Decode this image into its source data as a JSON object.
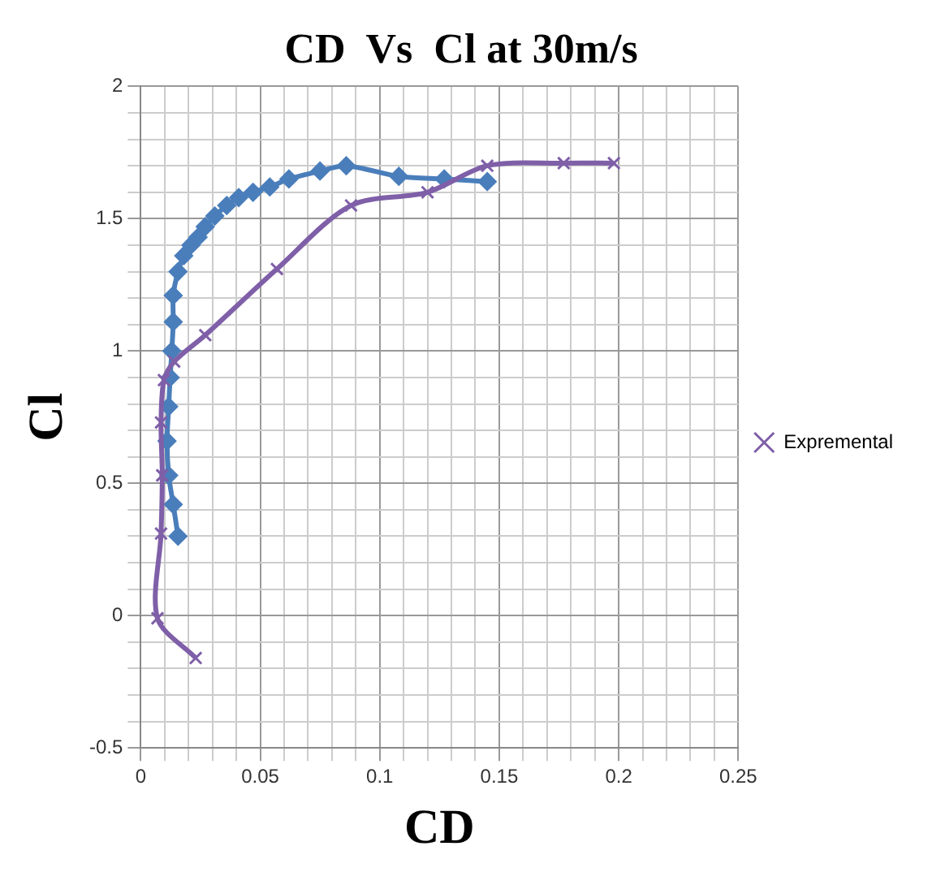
{
  "chart_data": {
    "type": "line",
    "title": "CD  Vs  Cl at 30m/s",
    "xlabel": "CD",
    "ylabel": "Cl",
    "xlim": [
      0,
      0.25
    ],
    "ylim": [
      -0.5,
      2
    ],
    "xticks": [
      0,
      {
        "value": 0.01,
        "label": null
      },
      {
        "value": 0.02,
        "label": null
      },
      {
        "value": 0.03,
        "label": null
      },
      {
        "value": 0.04,
        "label": null
      },
      0.05,
      {
        "value": 0.06,
        "label": null
      },
      {
        "value": 0.07,
        "label": null
      },
      {
        "value": 0.08,
        "label": null
      },
      {
        "value": 0.09,
        "label": null
      },
      0.1,
      {
        "value": 0.11,
        "label": null
      },
      {
        "value": 0.12,
        "label": null
      },
      {
        "value": 0.13,
        "label": null
      },
      {
        "value": 0.14,
        "label": null
      },
      0.15,
      {
        "value": 0.16,
        "label": null
      },
      {
        "value": 0.17,
        "label": null
      },
      {
        "value": 0.18,
        "label": null
      },
      {
        "value": 0.19,
        "label": null
      },
      0.2,
      {
        "value": 0.21,
        "label": null
      },
      {
        "value": 0.22,
        "label": null
      },
      {
        "value": 0.23,
        "label": null
      },
      {
        "value": 0.24,
        "label": null
      },
      0.25
    ],
    "yticks": [
      -0.5,
      {
        "value": -0.4,
        "label": null
      },
      {
        "value": -0.3,
        "label": null
      },
      {
        "value": -0.2,
        "label": null
      },
      {
        "value": -0.1,
        "label": null
      },
      0,
      {
        "value": 0.1,
        "label": null
      },
      {
        "value": 0.2,
        "label": null
      },
      {
        "value": 0.3,
        "label": null
      },
      {
        "value": 0.4,
        "label": null
      },
      0.5,
      {
        "value": 0.6,
        "label": null
      },
      {
        "value": 0.7,
        "label": null
      },
      {
        "value": 0.8,
        "label": null
      },
      {
        "value": 0.9,
        "label": null
      },
      1,
      {
        "value": 1.1,
        "label": null
      },
      {
        "value": 1.2,
        "label": null
      },
      {
        "value": 1.3,
        "label": null
      },
      {
        "value": 1.4,
        "label": null
      },
      1.5,
      {
        "value": 1.6,
        "label": null
      },
      {
        "value": 1.7,
        "label": null
      },
      {
        "value": 1.8,
        "label": null
      },
      {
        "value": 1.9,
        "label": null
      },
      2
    ],
    "grid": true,
    "legend": "right",
    "series": [
      {
        "color": "#4a7ebb",
        "marker": "diamond",
        "x": [
          0.0156,
          0.0136,
          0.0117,
          0.011,
          0.0117,
          0.0123,
          0.013,
          0.0136,
          0.0136,
          0.0156,
          0.018,
          0.021,
          0.024,
          0.027,
          0.031,
          0.036,
          0.041,
          0.047,
          0.054,
          0.062,
          0.075,
          0.086,
          0.108,
          0.127,
          0.145
        ],
        "values": [
          0.3,
          0.42,
          0.53,
          0.66,
          0.79,
          0.9,
          1.0,
          1.11,
          1.21,
          1.3,
          1.36,
          1.4,
          1.43,
          1.47,
          1.51,
          1.55,
          1.58,
          1.6,
          1.62,
          1.65,
          1.68,
          1.7,
          1.66,
          1.65,
          1.64
        ]
      },
      {
        "name": "Expremental",
        "color": "#7f5fa8",
        "marker": "cross",
        "x": [
          0.023,
          0.007,
          0.0085,
          0.009,
          0.0085,
          0.0097,
          0.014,
          0.027,
          0.057,
          0.088,
          0.12,
          0.145,
          0.177,
          0.198
        ],
        "values": [
          -0.16,
          -0.01,
          0.31,
          0.53,
          0.73,
          0.89,
          0.96,
          1.06,
          1.31,
          1.55,
          1.6,
          1.7,
          1.71,
          1.71
        ]
      }
    ]
  }
}
